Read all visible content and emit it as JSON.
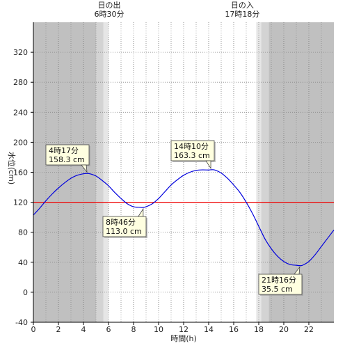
{
  "chart_data": {
    "type": "line",
    "title": "",
    "xlabel": "時間(h)",
    "ylabel": "水位(cm)",
    "xlim": [
      0,
      24
    ],
    "ylim": [
      -40,
      360
    ],
    "x_ticks": [
      0,
      2,
      4,
      6,
      8,
      10,
      12,
      14,
      16,
      18,
      20,
      22
    ],
    "y_ticks": [
      -40,
      0,
      40,
      80,
      120,
      160,
      200,
      240,
      280,
      320
    ],
    "grid": true,
    "reference_line": {
      "value": 120,
      "color": "#ee0000"
    },
    "sunrise": {
      "label": "日の出",
      "time_label": "6時30分",
      "hour": 6.5
    },
    "sunset": {
      "label": "日の入",
      "time_label": "17時18分",
      "hour": 17.3
    },
    "shading": [
      {
        "from": 0,
        "to": 5.0,
        "color": "#c0c0c0"
      },
      {
        "from": 5.0,
        "to": 5.6,
        "color": "#d3d3d3"
      },
      {
        "from": 5.6,
        "to": 6.0,
        "color": "#e6e6e6"
      },
      {
        "from": 17.8,
        "to": 18.2,
        "color": "#e6e6e6"
      },
      {
        "from": 18.2,
        "to": 18.8,
        "color": "#d3d3d3"
      },
      {
        "from": 18.8,
        "to": 24,
        "color": "#c0c0c0"
      }
    ],
    "series": [
      {
        "color": "#0000dd",
        "x": [
          0,
          0.5,
          1,
          1.5,
          2,
          2.5,
          3,
          3.5,
          4,
          4.28,
          4.5,
          5,
          5.5,
          6,
          6.5,
          7,
          7.5,
          8,
          8.5,
          8.77,
          9,
          9.5,
          10,
          10.5,
          11,
          11.5,
          12,
          12.5,
          13,
          13.5,
          14,
          14.17,
          14.5,
          15,
          15.5,
          16,
          16.5,
          17,
          17.5,
          18,
          18.5,
          19,
          19.5,
          20,
          20.5,
          21,
          21.27,
          21.5,
          22,
          22.5,
          23,
          23.5,
          24
        ],
        "y": [
          103,
          112,
          122,
          131,
          139,
          146,
          152,
          156,
          158,
          158.3,
          158,
          155,
          149,
          142,
          133,
          125,
          118,
          114,
          113.2,
          113,
          114,
          118,
          125,
          134,
          143,
          150,
          156,
          160,
          162.5,
          163.2,
          163,
          163.3,
          163,
          159,
          152,
          143,
          133,
          120,
          105,
          88,
          71,
          58,
          48,
          41,
          37,
          36,
          35.5,
          36,
          41,
          50,
          61,
          72,
          83
        ]
      }
    ],
    "annotations": [
      {
        "time": "4時17分",
        "value": "158.3 cm",
        "x": 4.28,
        "y": 158.3,
        "kind": "high"
      },
      {
        "time": "8時46分",
        "value": "113.0 cm",
        "x": 8.77,
        "y": 113.0,
        "kind": "low"
      },
      {
        "time": "14時10分",
        "value": "163.3 cm",
        "x": 14.17,
        "y": 163.3,
        "kind": "high"
      },
      {
        "time": "21時16分",
        "value": "35.5 cm",
        "x": 21.27,
        "y": 35.5,
        "kind": "low"
      }
    ]
  }
}
